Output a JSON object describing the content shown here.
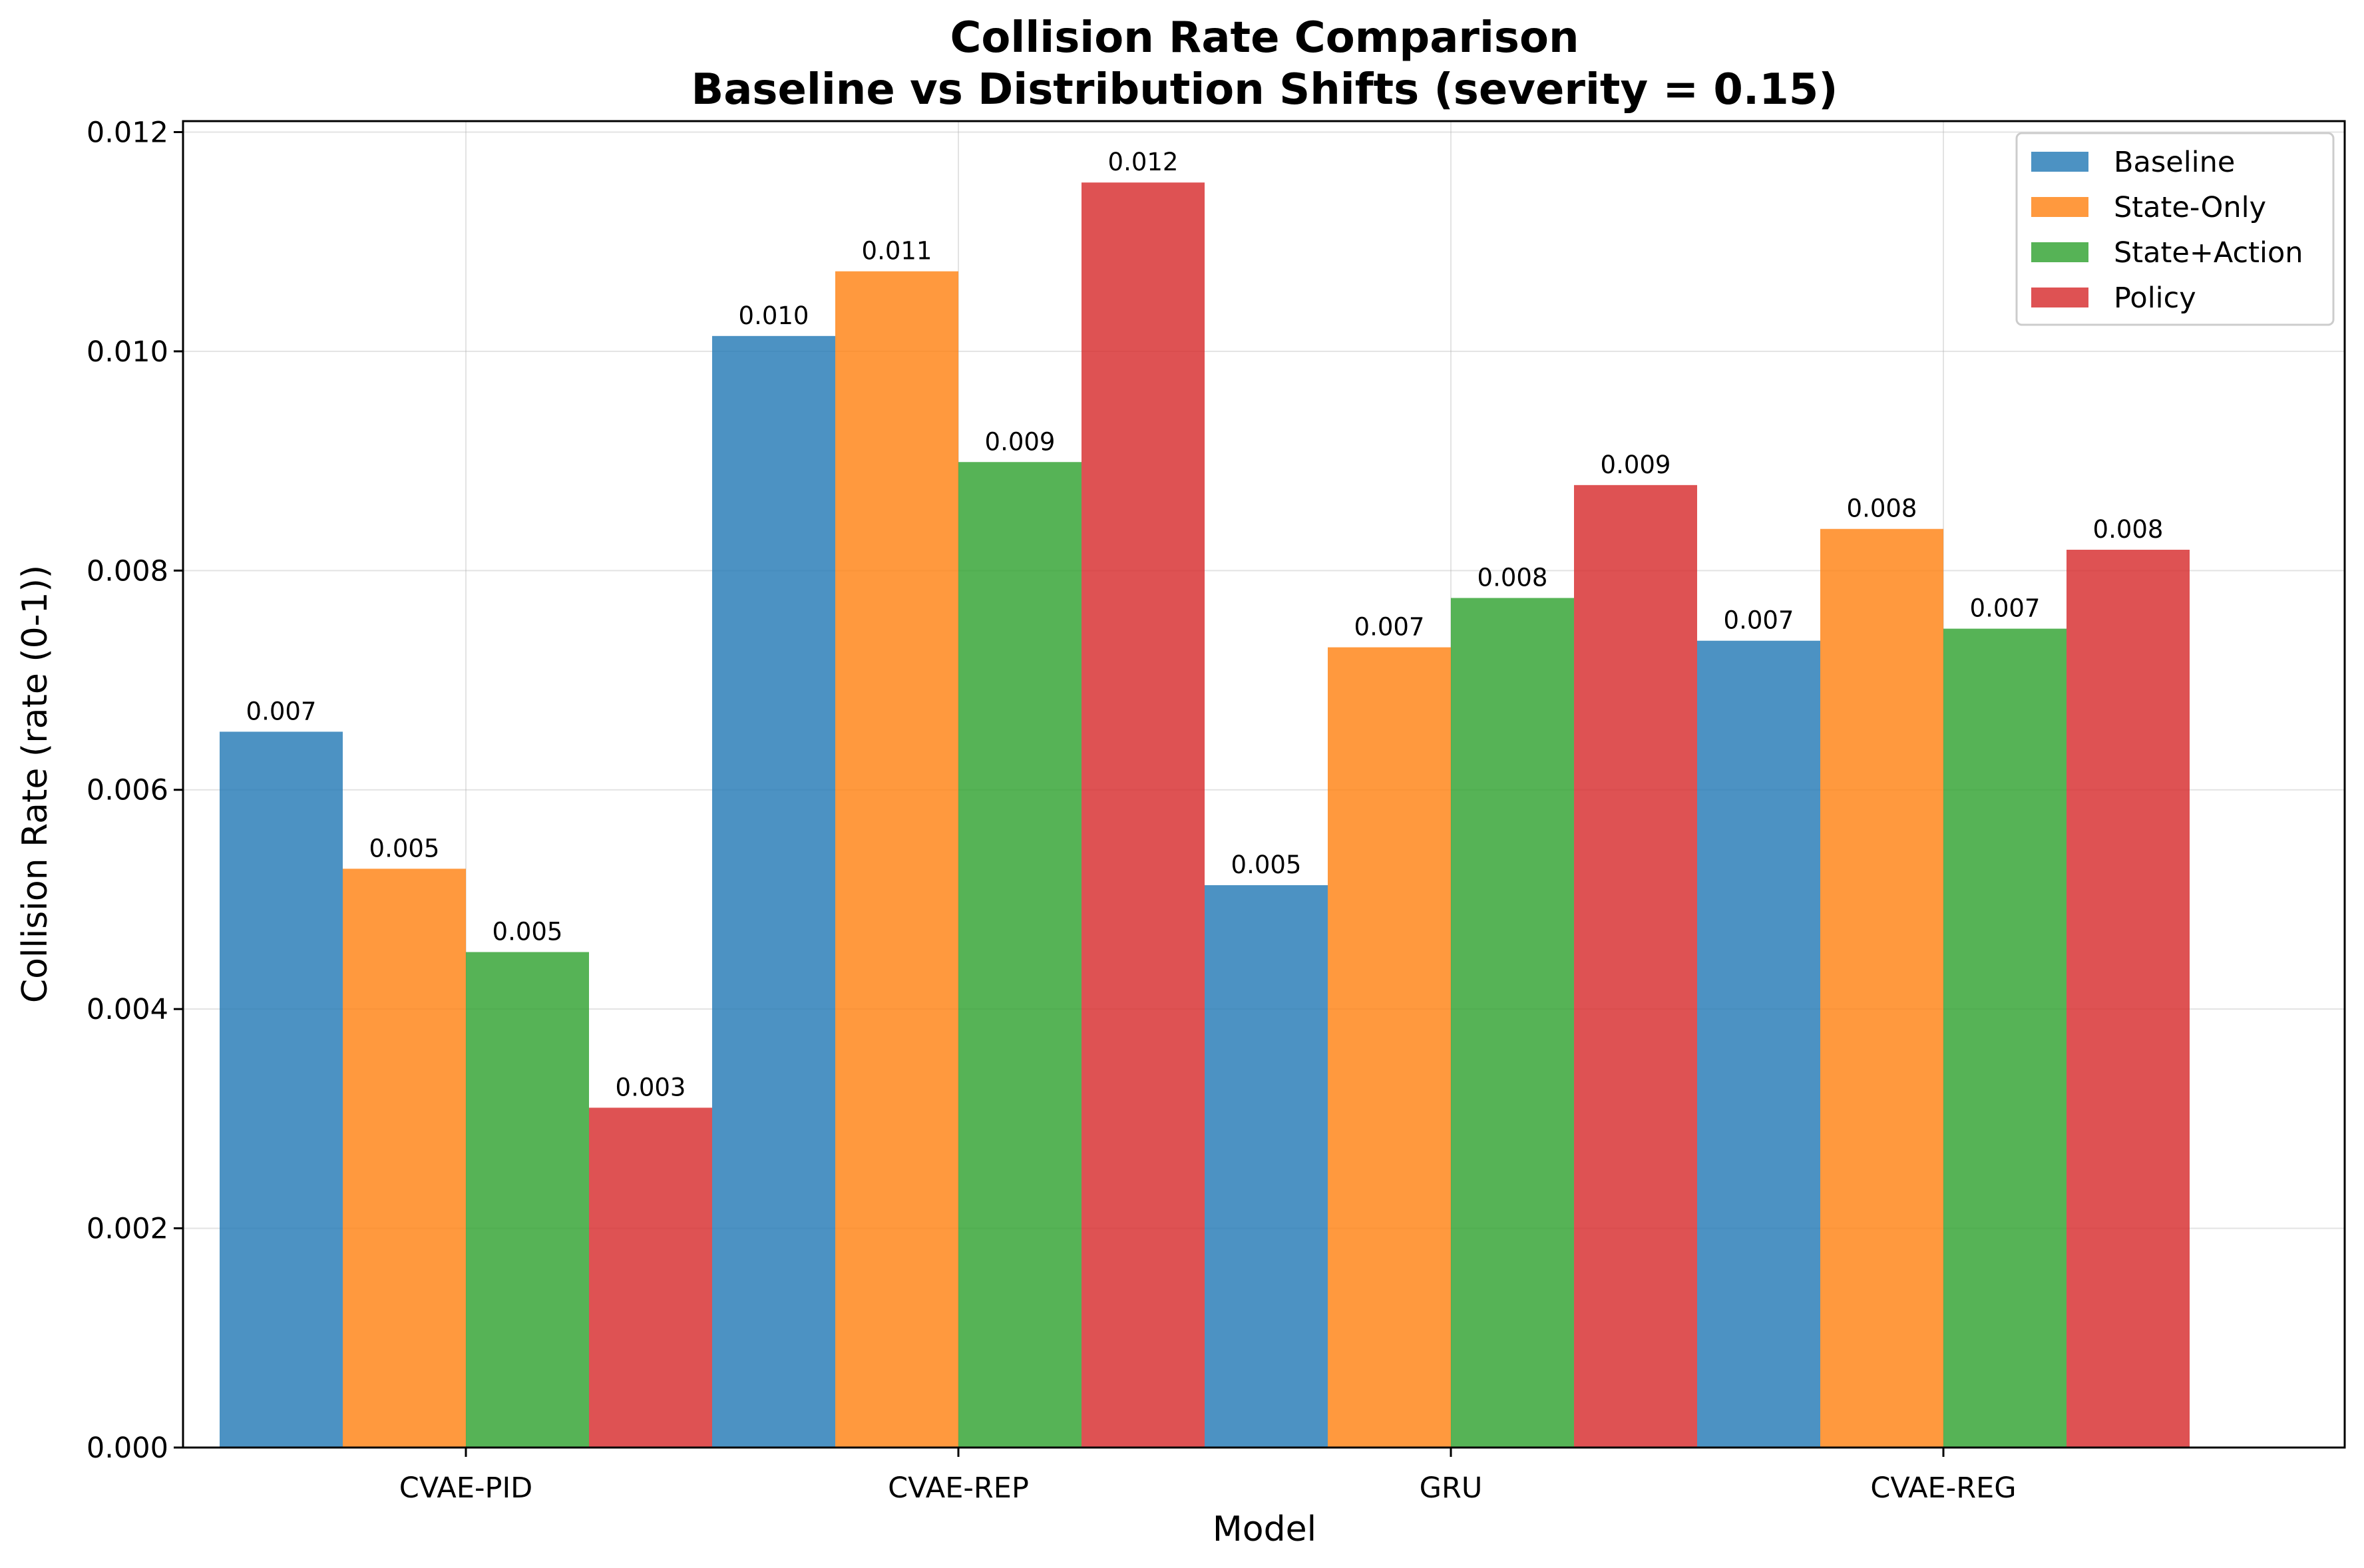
{
  "chart_data": {
    "type": "bar",
    "title": "Collision Rate Comparison",
    "subtitle": "Baseline vs Distribution Shifts (severity = 0.15)",
    "xlabel": "Model",
    "ylabel": "Collision Rate (rate (0-1))",
    "categories": [
      "CVAE-PID",
      "CVAE-REP",
      "GRU",
      "CVAE-REG"
    ],
    "ylim": [
      0,
      0.0121
    ],
    "yticks": [
      "0.000",
      "0.002",
      "0.004",
      "0.006",
      "0.008",
      "0.010",
      "0.012"
    ],
    "grid": true,
    "legend_position": "top-right",
    "series": [
      {
        "name": "Baseline",
        "color": "#1f77b4",
        "values": [
          0.00653,
          0.01014,
          0.00513,
          0.00736
        ],
        "labels": [
          "0.007",
          "0.010",
          "0.005",
          "0.007"
        ]
      },
      {
        "name": "State-Only",
        "color": "#ff7f0e",
        "values": [
          0.00528,
          0.01073,
          0.0073,
          0.00838
        ],
        "labels": [
          "0.005",
          "0.011",
          "0.007",
          "0.008"
        ]
      },
      {
        "name": "State+Action",
        "color": "#2ca02c",
        "values": [
          0.00452,
          0.00899,
          0.00775,
          0.00747
        ],
        "labels": [
          "0.005",
          "0.009",
          "0.008",
          "0.007"
        ]
      },
      {
        "name": "Policy",
        "color": "#d62728",
        "values": [
          0.0031,
          0.01154,
          0.00878,
          0.00819
        ],
        "labels": [
          "0.003",
          "0.012",
          "0.009",
          "0.008"
        ]
      }
    ]
  }
}
